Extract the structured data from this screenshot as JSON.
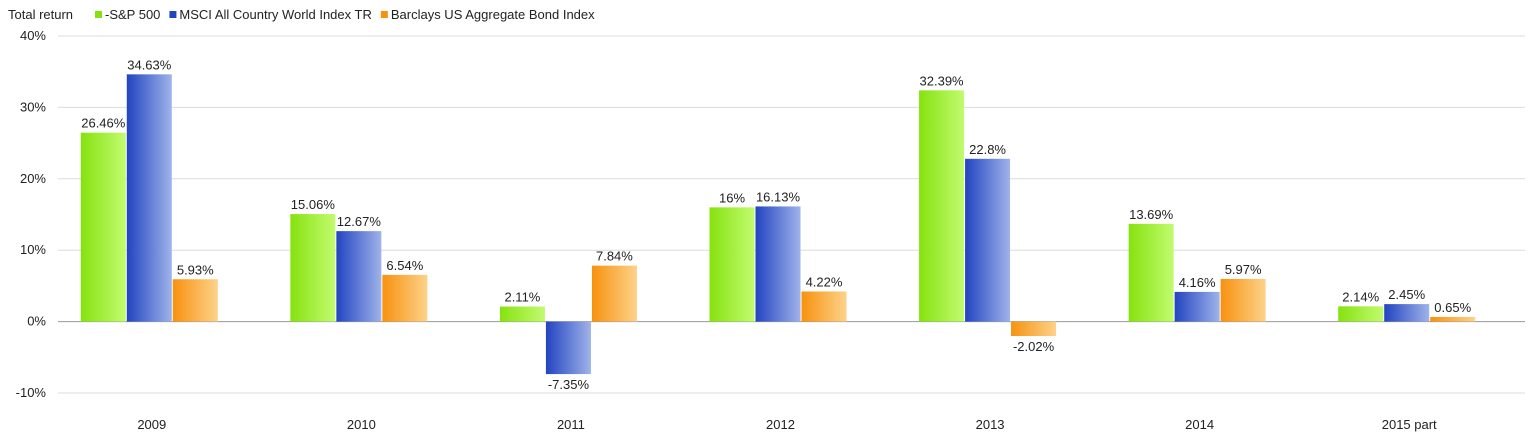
{
  "header": {
    "ylabel": "Total return"
  },
  "legend": [
    {
      "label": "-S&P 500",
      "color": "#86e20f"
    },
    {
      "label": "MSCI All Country World Index TR",
      "color": "#2244c0"
    },
    {
      "label": "Barclays US Aggregate Bond Index",
      "color": "#f7920f"
    }
  ],
  "chart_data": {
    "type": "bar",
    "ylabel": "Total return",
    "categories": [
      "2009",
      "2010",
      "2011",
      "2012",
      "2013",
      "2014",
      "2015 part"
    ],
    "series": [
      {
        "name": "-S&P 500",
        "color_start": "#86e20f",
        "color_end": "#c2fb6f",
        "values": [
          26.46,
          15.06,
          2.11,
          16,
          32.39,
          13.69,
          2.14
        ],
        "labels": [
          "26.46%",
          "15.06%",
          "2.11%",
          "16%",
          "32.39%",
          "13.69%",
          "2.14%"
        ]
      },
      {
        "name": "MSCI All Country World Index TR",
        "color_start": "#2244c0",
        "color_end": "#9fb3ea",
        "values": [
          34.63,
          12.67,
          -7.35,
          16.13,
          22.8,
          4.16,
          2.45
        ],
        "labels": [
          "34.63%",
          "12.67%",
          "-7.35%",
          "16.13%",
          "22.8%",
          "4.16%",
          "2.45%"
        ]
      },
      {
        "name": "Barclays US Aggregate Bond Index",
        "color_start": "#f7920f",
        "color_end": "#fdd28a",
        "values": [
          5.93,
          6.54,
          7.84,
          4.22,
          -2.02,
          5.97,
          0.65
        ],
        "labels": [
          "5.93%",
          "6.54%",
          "7.84%",
          "4.22%",
          "-2.02%",
          "5.97%",
          "0.65%"
        ]
      }
    ],
    "ylim": [
      -10,
      40
    ],
    "yticks": [
      -10,
      0,
      10,
      20,
      30,
      40
    ],
    "ytick_labels": [
      "-10%",
      "0%",
      "10%",
      "20%",
      "30%",
      "40%"
    ],
    "grid": true,
    "legend_position": "top-left"
  }
}
